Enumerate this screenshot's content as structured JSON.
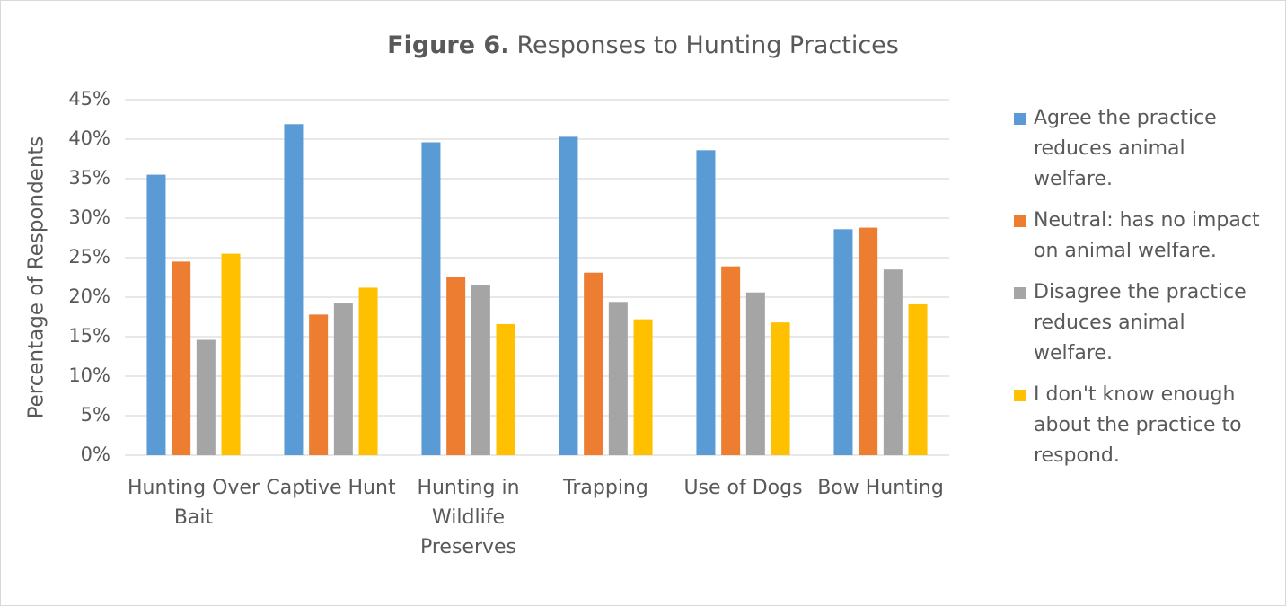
{
  "chart_data": {
    "type": "bar",
    "title_label": "Figure 6.",
    "title": "Responses to Hunting Practices",
    "y_label": "Percentage of Respondents",
    "categories": [
      "Hunting Over Bait",
      "Captive Hunt",
      "Hunting in Wildlife Preserves",
      "Trapping",
      "Use of Dogs",
      "Bow Hunting"
    ],
    "series": [
      {
        "name": "Agree the practice reduces animal welfare.",
        "color": "#5b9bd5",
        "values": [
          35.5,
          41.9,
          39.6,
          40.3,
          38.6,
          28.6
        ]
      },
      {
        "name": "Neutral: has no impact on animal welfare.",
        "color": "#ed7d31",
        "values": [
          24.5,
          17.8,
          22.5,
          23.1,
          23.9,
          28.8
        ]
      },
      {
        "name": "Disagree the practice reduces animal welfare.",
        "color": "#a5a5a5",
        "values": [
          14.6,
          19.2,
          21.5,
          19.4,
          20.6,
          23.5
        ]
      },
      {
        "name": "I don't know enough about the practice to respond.",
        "color": "#ffc000",
        "values": [
          25.5,
          21.2,
          16.6,
          17.2,
          16.8,
          19.1
        ]
      }
    ],
    "ylim": [
      0,
      45
    ],
    "yticks": [
      {
        "value": 0,
        "label": "0%"
      },
      {
        "value": 5,
        "label": "5%"
      },
      {
        "value": 10,
        "label": "10%"
      },
      {
        "value": 15,
        "label": "15%"
      },
      {
        "value": 20,
        "label": "20%"
      },
      {
        "value": 25,
        "label": "25%"
      },
      {
        "value": 30,
        "label": "30%"
      },
      {
        "value": 35,
        "label": "35%"
      },
      {
        "value": 40,
        "label": "40%"
      },
      {
        "value": 45,
        "label": "45%"
      }
    ],
    "grid": true,
    "legend": "right"
  }
}
